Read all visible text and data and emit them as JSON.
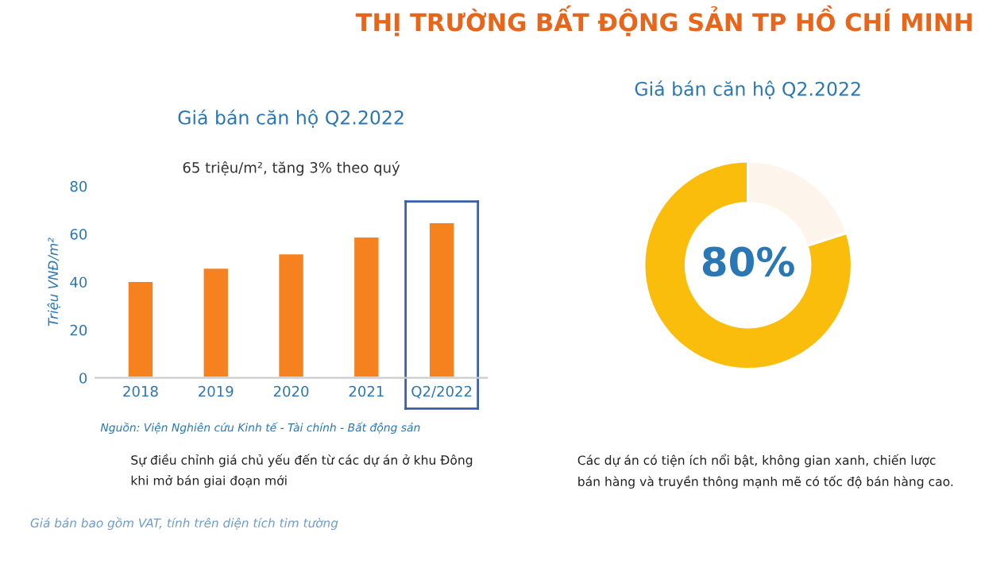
{
  "chart_data": [
    {
      "type": "bar",
      "title": "Giá bán căn hộ Q2.2022",
      "subtitle": "65 triệu/m², tăng 3% theo quý",
      "ylabel": "Triệu VNĐ/m²",
      "categories": [
        "2018",
        "2019",
        "2020",
        "2021",
        "Q2/2022"
      ],
      "values": [
        40.5,
        46,
        52,
        59,
        65
      ],
      "color": "#f5821f",
      "ylim": [
        0,
        80
      ],
      "yticks": [
        0,
        20,
        40,
        60,
        80
      ],
      "grid": false,
      "annotations": [
        "THỊ TRƯỜNG BẤT ĐỘNG SẢN TP HỒ CHÍ MINH",
        "Nguồn: Viện Nghiên cứu Kinh tế - Tài chính - Bất động sản",
        "Sự điều chỉnh giá chủ yếu đến từ các dự án ở khu Đông\nkhi mở bán giai đoạn mới",
        "Giá bán bao gồm VAT, tính trên diện tích tim tường"
      ]
    },
    {
      "type": "donut",
      "title": "Giá bán căn hộ Q2.2022",
      "categories": [
        null,
        null
      ],
      "values": [
        80,
        20
      ],
      "colors": [
        "#fbbd0b",
        "#fdf4ec"
      ],
      "value_labels": [
        "80%",
        null
      ],
      "annotations": [
        "Các dự án có tiện ích nổi bật, không gian xanh, chiến lược\nbán hàng và truyền thông mạnh mẽ có tốc độ bán hàng cao."
      ]
    }
  ]
}
